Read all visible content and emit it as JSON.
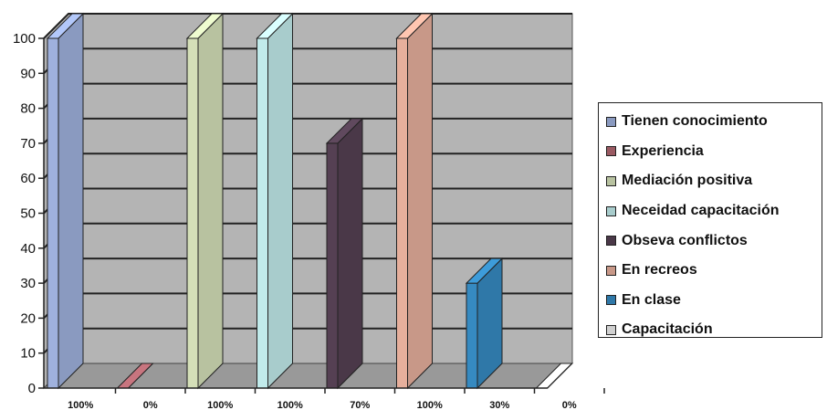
{
  "chart_data": {
    "type": "bar",
    "categories": [
      "100%",
      "0%",
      "100%",
      "100%",
      "70%",
      "100%",
      "30%",
      "0%"
    ],
    "series": [
      {
        "name": "Tienen conocimiento",
        "values": [
          100,
          0,
          0,
          0,
          0,
          0,
          0,
          0
        ],
        "color": "#8a9ac0"
      },
      {
        "name": "Experiencia",
        "values": [
          0,
          0,
          0,
          0,
          0,
          0,
          0,
          0
        ],
        "color": "#9a5a62"
      },
      {
        "name": "Mediación positiva",
        "values": [
          0,
          0,
          100,
          0,
          0,
          0,
          0,
          0
        ],
        "color": "#b8c2a0"
      },
      {
        "name": "Neceidad capacitación",
        "values": [
          0,
          0,
          0,
          100,
          0,
          0,
          0,
          0
        ],
        "color": "#a8cccc"
      },
      {
        "name": "Obseva conflictos",
        "values": [
          0,
          0,
          0,
          0,
          70,
          0,
          0,
          0
        ],
        "color": "#4a3848"
      },
      {
        "name": "En recreos",
        "values": [
          0,
          0,
          0,
          0,
          0,
          100,
          0,
          0
        ],
        "color": "#c89888"
      },
      {
        "name": "En clase",
        "values": [
          0,
          0,
          0,
          0,
          0,
          0,
          30,
          0
        ],
        "color": "#2f78a8"
      },
      {
        "name": "Capacitación",
        "values": [
          0,
          0,
          0,
          0,
          0,
          0,
          0,
          0
        ],
        "color": "#d0d0d0"
      }
    ],
    "values": [
      100,
      0,
      100,
      100,
      70,
      100,
      30,
      0
    ],
    "bar_colors": [
      "#8a9ac0",
      "#9a5a62",
      "#b8c2a0",
      "#a8cccc",
      "#4a3848",
      "#c89888",
      "#2f78a8",
      "#d0d0d0"
    ],
    "y_ticks": [
      "0",
      "10",
      "20",
      "30",
      "40",
      "50",
      "60",
      "70",
      "80",
      "90",
      "100"
    ],
    "ylim": [
      0,
      100
    ],
    "title": "",
    "xlabel": "",
    "ylabel": "",
    "grid": true,
    "legend_position": "right",
    "wall_color": "#b4b4b4",
    "floor_color": "#999999"
  }
}
